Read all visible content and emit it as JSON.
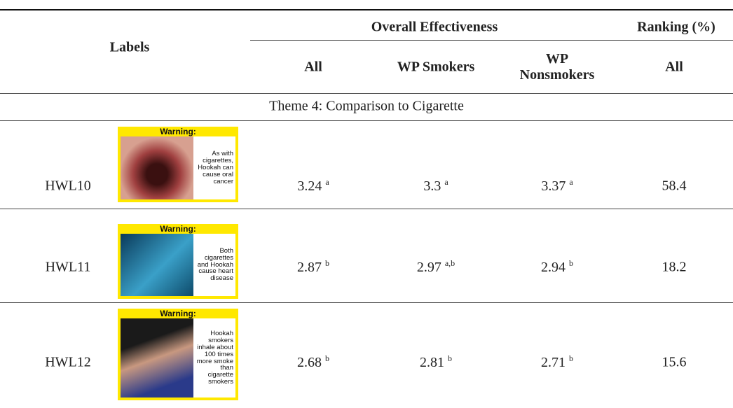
{
  "table": {
    "header": {
      "labels": "Labels",
      "group1": "Overall Effectiveness",
      "group2": "Ranking (%)",
      "columns": [
        "All",
        "WP Smokers",
        "WP Nonsmokers",
        "All"
      ]
    },
    "section": "Theme 4: Comparison to Cigarette",
    "rows": [
      {
        "label": "HWL10",
        "image": {
          "heading": "Warning:",
          "text": "As with cigarettes, Hookah can cause oral cancer"
        },
        "cells": [
          {
            "value": "3.24",
            "sup": "a"
          },
          {
            "value": "3.3",
            "sup": "a"
          },
          {
            "value": "3.37",
            "sup": "a"
          }
        ],
        "ranking": "58.4"
      },
      {
        "label": "HWL11",
        "image": {
          "heading": "Warning:",
          "text": "Both cigarettes and Hookah cause heart disease"
        },
        "cells": [
          {
            "value": "2.87",
            "sup": "b"
          },
          {
            "value": "2.97",
            "sup": "a,b"
          },
          {
            "value": "2.94",
            "sup": "b"
          }
        ],
        "ranking": "18.2"
      },
      {
        "label": "HWL12",
        "image": {
          "heading": "Warning:",
          "text": "Hookah smokers inhale about 100 times more smoke than cigarette smokers"
        },
        "cells": [
          {
            "value": "2.68",
            "sup": "b"
          },
          {
            "value": "2.81",
            "sup": "b"
          },
          {
            "value": "2.71",
            "sup": "b"
          }
        ],
        "ranking": "15.6"
      }
    ]
  }
}
